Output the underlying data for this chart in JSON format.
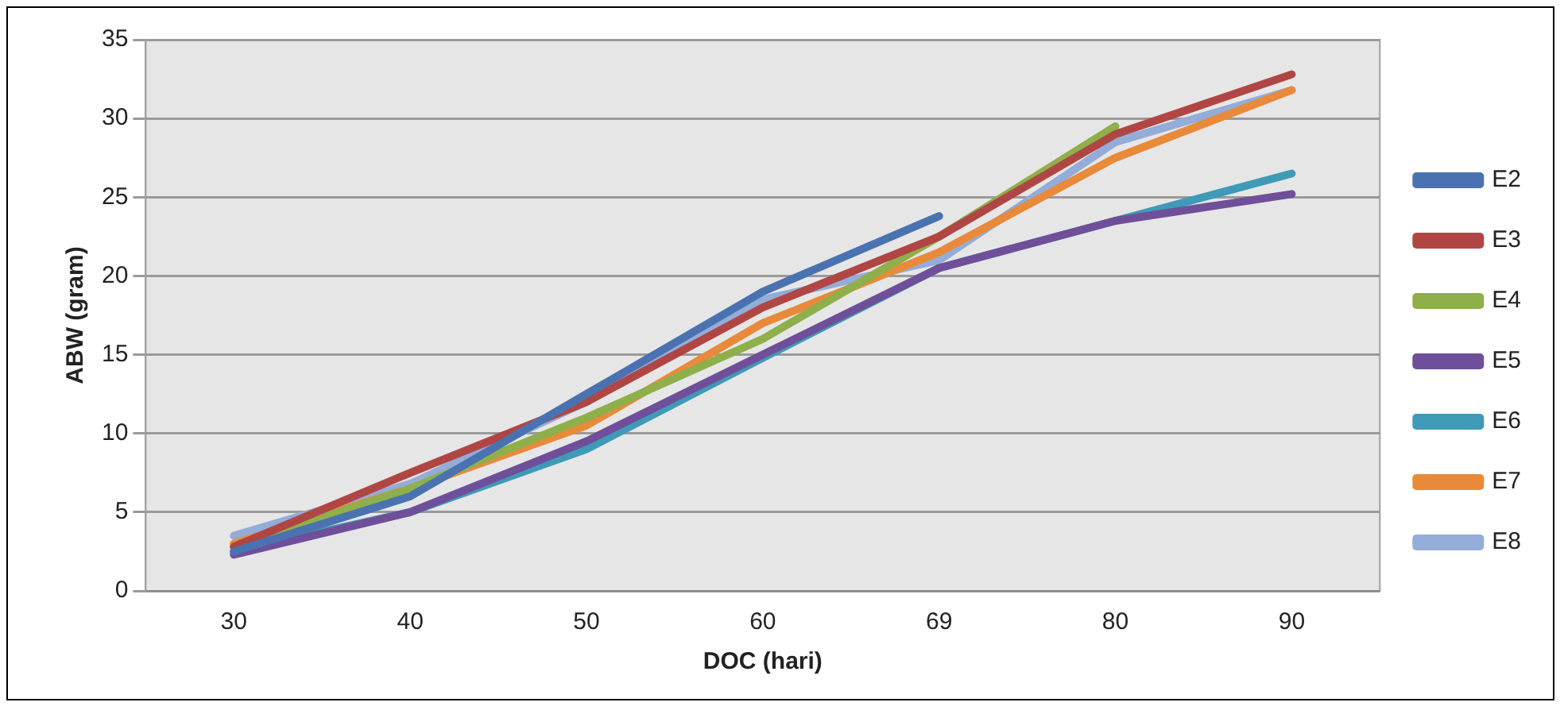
{
  "chart_data": {
    "type": "line",
    "xlabel": "DOC (hari)",
    "ylabel": "ABW (gram)",
    "categories": [
      "30",
      "40",
      "50",
      "60",
      "69",
      "80",
      "90"
    ],
    "series": [
      {
        "name": "E2",
        "color": "#4a72b0",
        "values": [
          2.5,
          6,
          12.5,
          19,
          23.8,
          null,
          null
        ]
      },
      {
        "name": "E3",
        "color": "#b04644",
        "values": [
          2.8,
          7.5,
          12,
          18,
          22.5,
          29,
          32.8
        ]
      },
      {
        "name": "E4",
        "color": "#8faf4a",
        "values": [
          2.8,
          6.5,
          11,
          16,
          22.5,
          29.5,
          null
        ]
      },
      {
        "name": "E5",
        "color": "#6f4f9a",
        "values": [
          2.3,
          5,
          9.5,
          15,
          20.5,
          23.5,
          25.2
        ]
      },
      {
        "name": "E6",
        "color": "#3f9ab8",
        "values": [
          2.5,
          5,
          9,
          14.8,
          20.5,
          23.5,
          26.5
        ]
      },
      {
        "name": "E7",
        "color": "#e88a3a",
        "values": [
          3,
          6.5,
          10.5,
          17,
          21.5,
          27.5,
          31.8
        ]
      },
      {
        "name": "E8",
        "color": "#93acd8",
        "values": [
          3.5,
          6.8,
          12,
          18.5,
          21,
          28.5,
          31.8
        ]
      }
    ],
    "ylim": [
      0,
      35
    ],
    "yticks": [
      0,
      5,
      10,
      15,
      20,
      25,
      30,
      35
    ],
    "grid": "y",
    "legend": "right",
    "marker": "none",
    "line_style": "solid"
  }
}
